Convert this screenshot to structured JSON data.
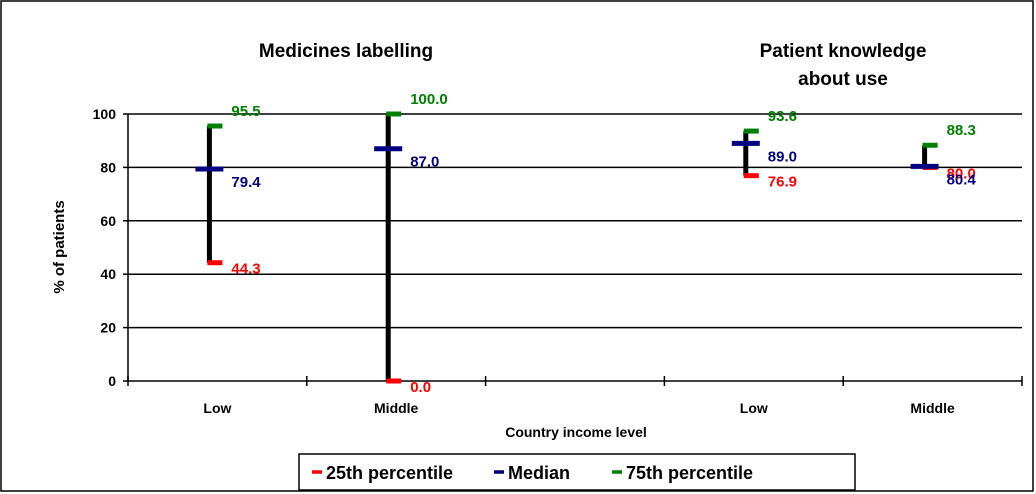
{
  "chart_data": {
    "type": "range",
    "titles": [
      "Medicines labelling",
      "Patient knowledge",
      "about use"
    ],
    "ylabel": "% of patients",
    "xlabel": "Country income level",
    "ylim": [
      0,
      100
    ],
    "yticks": [
      "0",
      "20",
      "40",
      "60",
      "80",
      "100"
    ],
    "gridlines": [
      20,
      40,
      60,
      80,
      100
    ],
    "categories": [
      "Low",
      "Middle",
      "",
      "Low",
      "Middle"
    ],
    "groups": [
      {
        "title": "Medicines labelling",
        "category": "Low",
        "p25": 44.3,
        "median": 79.4,
        "p75": 95.5,
        "p25_label": "44.3",
        "median_label": "79.4",
        "p75_label": "95.5"
      },
      {
        "title": "Medicines labelling",
        "category": "Middle",
        "p25": 0.0,
        "median": 87.0,
        "p75": 100.0,
        "p25_label": "0.0",
        "median_label": "87.0",
        "p75_label": "100.0"
      },
      {
        "title": "Patient knowledge about use",
        "category": "Low",
        "p25": 76.9,
        "median": 89.0,
        "p75": 93.6,
        "p25_label": "76.9",
        "median_label": "89.0",
        "p75_label": "93.6"
      },
      {
        "title": "Patient knowledge about use",
        "category": "Middle",
        "p25": 80.0,
        "median": 80.4,
        "p75": 88.3,
        "p25_label": "80.0",
        "median_label": "80.4",
        "p75_label": "88.3"
      }
    ],
    "legend": {
      "placement": "bottom",
      "items": [
        {
          "label": "25th percentile",
          "color": "#ff0000"
        },
        {
          "label": "Median",
          "color": "#000080"
        },
        {
          "label": "75th percentile",
          "color": "#008000"
        }
      ]
    },
    "colors": {
      "p25": "#ff0000",
      "median": "#000080",
      "p75": "#008000",
      "range": "#000000"
    }
  }
}
